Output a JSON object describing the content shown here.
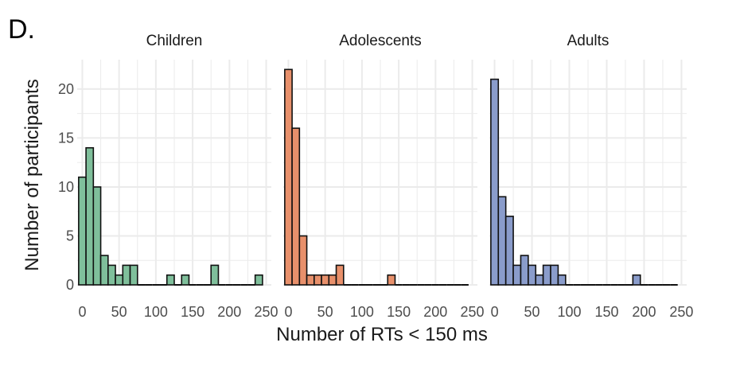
{
  "panel_label": "D.",
  "colors": {
    "grid": "#ebebeb",
    "axis_text": "#4d4d4d",
    "title_text": "#1a1a1a",
    "bar_stroke": "#111111"
  },
  "chart_data": {
    "type": "bar",
    "xlabel": "Number of RTs < 150 ms",
    "ylabel": "Number of participants",
    "xlim": [
      -7,
      257
    ],
    "ylim": [
      0,
      23
    ],
    "x_ticks": [
      0,
      50,
      100,
      150,
      200,
      250
    ],
    "y_ticks": [
      0,
      5,
      10,
      15,
      20
    ],
    "grid": true,
    "bin_width": 10,
    "bin_starts": [
      0,
      10,
      20,
      30,
      40,
      50,
      60,
      70,
      80,
      90,
      100,
      110,
      120,
      130,
      140,
      150,
      160,
      170,
      180,
      190,
      200,
      210,
      220,
      230,
      240
    ],
    "series": [
      {
        "name": "Children",
        "color": "#7fbf9b",
        "values": [
          11,
          14,
          10,
          3,
          2,
          1,
          2,
          2,
          0,
          0,
          0,
          0,
          1,
          0,
          1,
          0,
          0,
          0,
          2,
          0,
          0,
          0,
          0,
          0,
          1
        ]
      },
      {
        "name": "Adolescents",
        "color": "#e8906b",
        "values": [
          22,
          16,
          5,
          1,
          1,
          1,
          1,
          2,
          0,
          0,
          0,
          0,
          0,
          0,
          1,
          0,
          0,
          0,
          0,
          0,
          0,
          0,
          0,
          0,
          0
        ]
      },
      {
        "name": "Adults",
        "color": "#8a9ccb",
        "values": [
          21,
          9,
          7,
          2,
          3,
          2,
          1,
          2,
          2,
          1,
          0,
          0,
          0,
          0,
          0,
          0,
          0,
          0,
          0,
          1,
          0,
          0,
          0,
          0,
          0
        ]
      }
    ]
  }
}
